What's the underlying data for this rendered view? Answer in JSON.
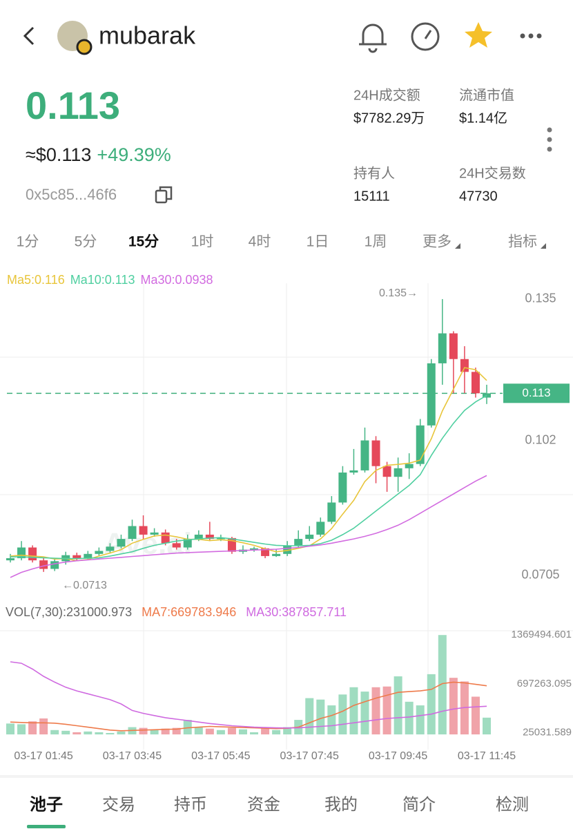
{
  "header": {
    "title": "mubarak"
  },
  "price": {
    "value": "0.113",
    "usd": "≈$0.113",
    "change": "+49.39%",
    "address": "0x5c85...46f6"
  },
  "stats": [
    {
      "label": "24H成交额",
      "value": "$7782.29万"
    },
    {
      "label": "流通市值",
      "value": "$1.14亿"
    },
    {
      "label": "持有人",
      "value": "15111"
    },
    {
      "label": "24H交易数",
      "value": "47730"
    }
  ],
  "timeframes": {
    "items": [
      "1分",
      "5分",
      "15分",
      "1时",
      "4时",
      "1日",
      "1周",
      "更多",
      "指标"
    ],
    "active": 2
  },
  "chart_data": [
    {
      "type": "candlestick",
      "up_color": "#45b585",
      "down_color": "#e5485a",
      "categories": [
        null,
        null,
        null,
        "03-17 01:45",
        null,
        null,
        null,
        null,
        null,
        null,
        null,
        "03-17 03:45",
        null,
        null,
        null,
        null,
        null,
        null,
        null,
        "03-17 05:45",
        null,
        null,
        null,
        null,
        null,
        null,
        null,
        "03-17 07:45",
        null,
        null,
        null,
        null,
        null,
        null,
        null,
        "03-17 09:45",
        null,
        null,
        null,
        null,
        null,
        null,
        null,
        "03-17 11:45"
      ],
      "open": [
        0.074,
        0.0745,
        0.077,
        0.074,
        0.072,
        0.0738,
        0.0752,
        0.0745,
        0.0755,
        0.0762,
        0.0772,
        0.079,
        0.082,
        0.08,
        0.0805,
        0.078,
        0.077,
        0.079,
        0.08,
        0.079,
        0.0792,
        0.076,
        0.0765,
        0.0768,
        0.075,
        0.0755,
        0.0775,
        0.079,
        0.08,
        0.083,
        0.0875,
        0.0945,
        0.095,
        0.102,
        0.096,
        0.0935,
        0.0955,
        0.0965,
        0.1055,
        0.12,
        0.127,
        0.121,
        0.118,
        0.112
      ],
      "high": [
        0.0755,
        0.0785,
        0.0775,
        0.0745,
        0.0745,
        0.076,
        0.0758,
        0.0762,
        0.077,
        0.078,
        0.08,
        0.0835,
        0.0845,
        0.0815,
        0.0812,
        0.079,
        0.08,
        0.081,
        0.083,
        0.08,
        0.0795,
        0.0775,
        0.0772,
        0.077,
        0.0765,
        0.0785,
        0.081,
        0.082,
        0.084,
        0.089,
        0.096,
        0.1,
        0.105,
        0.103,
        0.097,
        0.098,
        0.099,
        0.107,
        0.121,
        0.135,
        0.1275,
        0.124,
        0.119,
        0.115
      ],
      "low": [
        0.0735,
        0.074,
        0.0735,
        0.0713,
        0.0715,
        0.073,
        0.074,
        0.0742,
        0.075,
        0.0758,
        0.0768,
        0.0785,
        0.079,
        0.0795,
        0.0775,
        0.0765,
        0.0765,
        0.0785,
        0.0785,
        0.0785,
        0.0755,
        0.0755,
        0.076,
        0.0745,
        0.0748,
        0.075,
        0.077,
        0.0785,
        0.0795,
        0.0825,
        0.087,
        0.094,
        0.0945,
        0.092,
        0.09,
        0.09,
        0.093,
        0.096,
        0.105,
        0.115,
        0.113,
        0.113,
        0.112,
        0.1105
      ],
      "close": [
        0.0745,
        0.077,
        0.074,
        0.072,
        0.0738,
        0.0752,
        0.0745,
        0.0755,
        0.0762,
        0.0772,
        0.079,
        0.082,
        0.08,
        0.0805,
        0.078,
        0.077,
        0.079,
        0.08,
        0.079,
        0.0792,
        0.076,
        0.0765,
        0.0768,
        0.075,
        0.0755,
        0.0775,
        0.079,
        0.08,
        0.083,
        0.0875,
        0.0945,
        0.095,
        0.102,
        0.096,
        0.0935,
        0.0955,
        0.0965,
        0.1055,
        0.12,
        0.127,
        0.121,
        0.118,
        0.113,
        0.113
      ],
      "series": [
        {
          "name": "Ma5:0.116",
          "color": "#e8c53a",
          "values": [
            0.075,
            0.0752,
            0.075,
            0.0748,
            0.0743,
            0.0744,
            0.0739,
            0.0742,
            0.075,
            0.0757,
            0.0765,
            0.078,
            0.0789,
            0.0797,
            0.0799,
            0.0795,
            0.0789,
            0.0789,
            0.0786,
            0.0788,
            0.0786,
            0.0781,
            0.0775,
            0.0767,
            0.076,
            0.0763,
            0.0768,
            0.0774,
            0.079,
            0.0814,
            0.0848,
            0.088,
            0.0924,
            0.095,
            0.0962,
            0.0964,
            0.0967,
            0.0974,
            0.1024,
            0.1089,
            0.114,
            0.119,
            0.1185,
            0.116
          ]
        },
        {
          "name": "Ma10:0.113",
          "color": "#4fcfa0",
          "values": [
            0.0748,
            0.0748,
            0.0747,
            0.0746,
            0.0745,
            0.0744,
            0.0744,
            0.0745,
            0.0746,
            0.075,
            0.0755,
            0.076,
            0.0768,
            0.0775,
            0.078,
            0.0785,
            0.0788,
            0.079,
            0.0792,
            0.0793,
            0.079,
            0.0786,
            0.0782,
            0.0778,
            0.0775,
            0.0774,
            0.0774,
            0.0775,
            0.0779,
            0.0787,
            0.08,
            0.0815,
            0.0835,
            0.0855,
            0.0875,
            0.0895,
            0.0915,
            0.094,
            0.0985,
            0.1025,
            0.106,
            0.109,
            0.111,
            0.1125
          ]
        },
        {
          "name": "Ma30:0.0938",
          "color": "#d26be0",
          "values": [
            0.07,
            0.0712,
            0.072,
            0.0727,
            0.0732,
            0.0736,
            0.0739,
            0.0741,
            0.0743,
            0.0745,
            0.0747,
            0.0749,
            0.0751,
            0.0753,
            0.0755,
            0.0757,
            0.0758,
            0.0759,
            0.076,
            0.0761,
            0.0762,
            0.0763,
            0.0764,
            0.0765,
            0.0766,
            0.0768,
            0.077,
            0.0773,
            0.0776,
            0.078,
            0.0785,
            0.079,
            0.0796,
            0.0803,
            0.0812,
            0.0822,
            0.0835,
            0.085,
            0.0865,
            0.088,
            0.0895,
            0.091,
            0.0925,
            0.0938
          ]
        }
      ],
      "ylim": [
        0.0645,
        0.1387
      ],
      "yticks": [
        0.0705,
        0.102,
        0.135
      ],
      "current_price": {
        "value": 0.113,
        "label": "0.113"
      },
      "annotations": [
        {
          "value": 0.135,
          "label": "0.135→"
        },
        {
          "value": 0.0713,
          "label": "←0.0713"
        }
      ]
    },
    {
      "type": "bar",
      "title": "VOL(7,30):231000.973",
      "up_color": "#9fdcc0",
      "down_color": "#f0a3a9",
      "values": [
        150000,
        140000,
        180000,
        220000,
        60000,
        50000,
        30000,
        40000,
        30000,
        20000,
        40000,
        100000,
        90000,
        60000,
        80000,
        90000,
        200000,
        100000,
        80000,
        60000,
        90000,
        70000,
        30000,
        90000,
        60000,
        100000,
        200000,
        500000,
        480000,
        400000,
        550000,
        650000,
        590000,
        650000,
        660000,
        800000,
        450000,
        400000,
        830000,
        1369494.601,
        780000,
        730000,
        520000,
        231000.973
      ],
      "series": [
        {
          "name": "MA7:669783.946",
          "color": "#ee7a4a",
          "values": [
            170000,
            165000,
            160000,
            160000,
            155000,
            140000,
            120000,
            100000,
            80000,
            60000,
            50000,
            55000,
            60000,
            65000,
            70000,
            72000,
            90000,
            100000,
            110000,
            105000,
            100000,
            95000,
            90000,
            85000,
            80000,
            85000,
            100000,
            160000,
            220000,
            260000,
            320000,
            400000,
            450000,
            500000,
            540000,
            580000,
            590000,
            600000,
            620000,
            700000,
            720000,
            710000,
            690000,
            669783.946
          ]
        },
        {
          "name": "MA30:387857.711",
          "color": "#cf6ae0",
          "values": [
            1000000,
            980000,
            900000,
            800000,
            720000,
            650000,
            600000,
            560000,
            520000,
            480000,
            420000,
            330000,
            290000,
            260000,
            230000,
            210000,
            190000,
            170000,
            150000,
            135000,
            120000,
            110000,
            100000,
            95000,
            90000,
            88000,
            90000,
            100000,
            110000,
            120000,
            140000,
            160000,
            180000,
            200000,
            220000,
            230000,
            240000,
            260000,
            280000,
            320000,
            350000,
            370000,
            380000,
            387857.711
          ]
        }
      ],
      "ylim": [
        -180000,
        1400000
      ],
      "yticks": [
        25031.589,
        697263.095,
        1369494.601
      ]
    }
  ],
  "bottom_tabs": {
    "items": [
      "池子",
      "交易",
      "持币",
      "资金",
      "我的",
      "简介",
      "检测"
    ],
    "active": 0
  }
}
